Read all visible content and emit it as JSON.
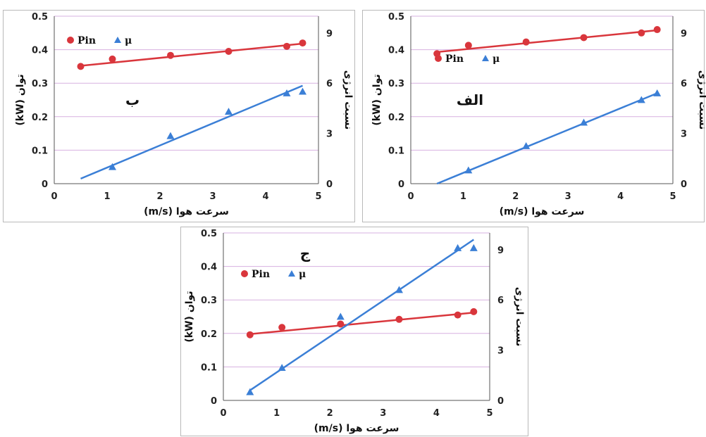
{
  "colors": {
    "pin": "#d9363c",
    "mu": "#3b7fd6",
    "grid": "#d7b0e0",
    "axis": "#555555"
  },
  "chart_data": [
    {
      "panel": "b",
      "type": "scatter",
      "label": "ب",
      "xlabel": "سرعت هوا (m/s)",
      "ylabel_left": "توان (kW)",
      "ylabel_right": "نسبت انرژی",
      "xlim": [
        0,
        5
      ],
      "ylim_left": [
        0,
        0.5
      ],
      "ylim_right": [
        0,
        10
      ],
      "xticks": [
        "0",
        "1",
        "2",
        "3",
        "4",
        "5"
      ],
      "yticks_left": [
        "0",
        "0.1",
        "0.2",
        "0.3",
        "0.4",
        "0.5"
      ],
      "yticks_right": [
        "0",
        "3",
        "6",
        "9"
      ],
      "legend": [
        "Pin",
        "μ"
      ],
      "series": [
        {
          "name": "Pin",
          "axis": "left",
          "marker": "circle",
          "x": [
            0.5,
            1.1,
            2.2,
            3.3,
            4.4,
            4.7
          ],
          "y": [
            0.35,
            0.372,
            0.383,
            0.395,
            0.41,
            0.42
          ],
          "trend": [
            [
              0.5,
              0.352
            ],
            [
              4.7,
              0.418
            ]
          ]
        },
        {
          "name": "μ",
          "axis": "right",
          "marker": "triangle",
          "x": [
            1.1,
            2.2,
            3.3,
            4.4,
            4.7
          ],
          "y": [
            1.0,
            2.85,
            4.3,
            5.4,
            5.5
          ],
          "trend": [
            [
              0.5,
              0.3
            ],
            [
              4.7,
              5.85
            ]
          ]
        }
      ]
    },
    {
      "panel": "alef",
      "type": "scatter",
      "label": "الف",
      "xlabel": "سرعت هوا (m/s)",
      "ylabel_left": "توان (kW)",
      "ylabel_right": "نسبت انرژی",
      "xlim": [
        0,
        5
      ],
      "ylim_left": [
        0,
        0.5
      ],
      "ylim_right": [
        0,
        10
      ],
      "xticks": [
        "0",
        "1",
        "2",
        "3",
        "4",
        "5"
      ],
      "yticks_left": [
        "0",
        "0.1",
        "0.2",
        "0.3",
        "0.4",
        "0.5"
      ],
      "yticks_right": [
        "0",
        "3",
        "6",
        "9"
      ],
      "legend": [
        "Pin",
        "μ"
      ],
      "series": [
        {
          "name": "Pin",
          "axis": "left",
          "marker": "circle",
          "x": [
            0.5,
            1.1,
            2.2,
            3.3,
            4.4,
            4.7
          ],
          "y": [
            0.388,
            0.413,
            0.423,
            0.436,
            0.45,
            0.46
          ],
          "trend": [
            [
              0.5,
              0.393
            ],
            [
              4.7,
              0.458
            ]
          ]
        },
        {
          "name": "μ",
          "axis": "right",
          "marker": "triangle",
          "x": [
            1.1,
            2.2,
            3.3,
            4.4,
            4.7
          ],
          "y": [
            0.8,
            2.25,
            3.65,
            5.0,
            5.4
          ],
          "trend": [
            [
              0.5,
              0.0
            ],
            [
              4.7,
              5.4
            ]
          ]
        }
      ]
    },
    {
      "panel": "jim",
      "type": "scatter",
      "label": "ج",
      "xlabel": "سرعت هوا (m/s)",
      "ylabel_left": "توان (kW)",
      "ylabel_right": "نسبت انرژی",
      "xlim": [
        0,
        5
      ],
      "ylim_left": [
        0,
        0.5
      ],
      "ylim_right": [
        0,
        10
      ],
      "xticks": [
        "0",
        "1",
        "2",
        "3",
        "4",
        "5"
      ],
      "yticks_left": [
        "0",
        "0.1",
        "0.2",
        "0.3",
        "0.4",
        "0.5"
      ],
      "yticks_right": [
        "0",
        "3",
        "6",
        "9"
      ],
      "legend": [
        "Pin",
        "μ"
      ],
      "series": [
        {
          "name": "Pin",
          "axis": "left",
          "marker": "circle",
          "x": [
            0.5,
            1.1,
            2.2,
            3.3,
            4.4,
            4.7
          ],
          "y": [
            0.196,
            0.218,
            0.228,
            0.242,
            0.255,
            0.265
          ],
          "trend": [
            [
              0.5,
              0.198
            ],
            [
              4.7,
              0.262
            ]
          ]
        },
        {
          "name": "μ",
          "axis": "right",
          "marker": "triangle",
          "x": [
            0.5,
            1.1,
            2.2,
            3.3,
            4.4,
            4.7
          ],
          "y": [
            0.5,
            1.95,
            5.0,
            6.6,
            9.1,
            9.1
          ],
          "trend": [
            [
              0.5,
              0.6
            ],
            [
              4.7,
              9.6
            ]
          ]
        }
      ]
    }
  ]
}
